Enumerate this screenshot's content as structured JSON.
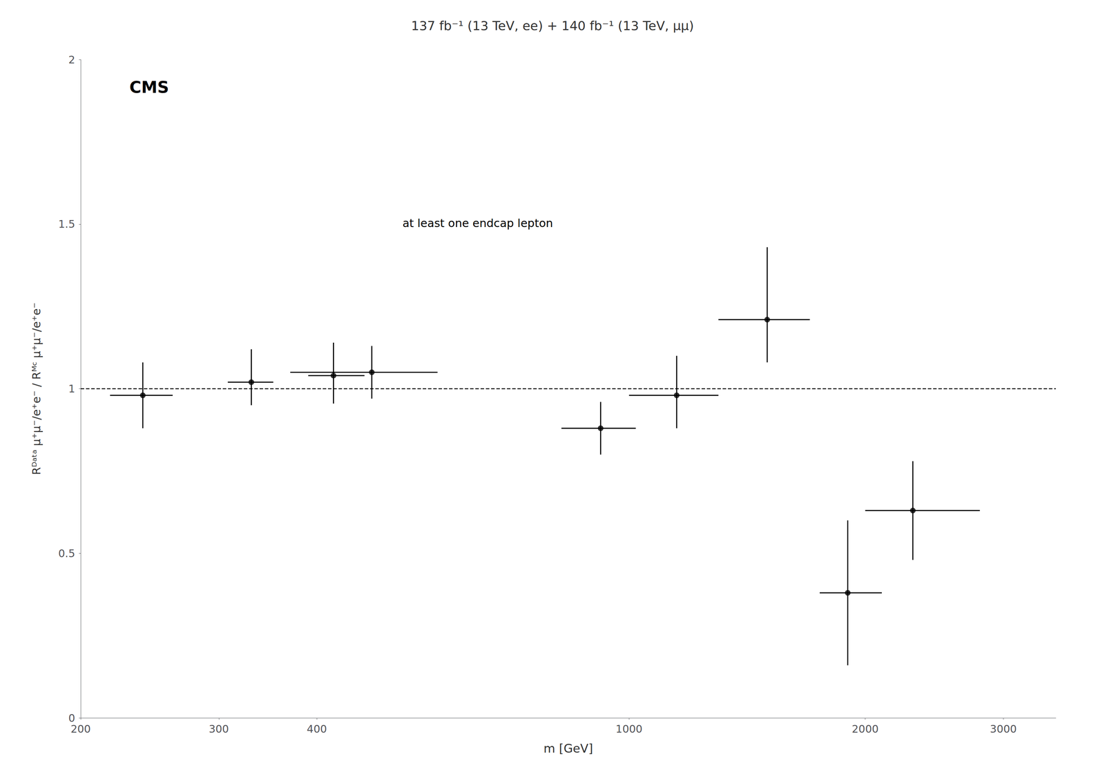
{
  "chart_data": {
    "type": "scatter",
    "title": "137 fb⁻¹ (13 TeV, ee) + 140 fb⁻¹ (13 TeV, μμ)",
    "xlabel": "m [GeV]",
    "ylabel": "Rᴰᵃᵗᵃ μ⁺μ⁻/e⁺e⁻ / Rᴹᶜ μ⁺μ⁻/e⁺e⁻",
    "annotations": [
      "CMS",
      "at least one endcap lepton"
    ],
    "x": [
      240,
      330,
      420,
      470,
      920,
      1150,
      1500,
      1900,
      2300
    ],
    "values": [
      0.98,
      1.02,
      1.04,
      1.05,
      0.88,
      0.98,
      1.21,
      0.38,
      0.63
    ],
    "xerr_minus": [
      22,
      22,
      30,
      100,
      100,
      150,
      200,
      150,
      300
    ],
    "xerr_plus": [
      22,
      22,
      40,
      100,
      100,
      150,
      200,
      200,
      500
    ],
    "yerr_minus": [
      0.1,
      0.07,
      0.085,
      0.08,
      0.08,
      0.1,
      0.13,
      0.22,
      0.15
    ],
    "yerr_plus": [
      0.1,
      0.1,
      0.1,
      0.08,
      0.08,
      0.12,
      0.22,
      0.22,
      0.15
    ],
    "color": "#000000",
    "marker": "circle",
    "hline": {
      "y": 1.0,
      "line_style": "dashed",
      "color": "#000000"
    },
    "log": "x",
    "xlim": [
      200,
      3500
    ],
    "xticks": [
      200,
      300,
      400,
      1000,
      2000,
      3000
    ],
    "ylim": [
      0,
      2.0
    ],
    "yticks": [
      0,
      0.5,
      1.0,
      1.5,
      2.0
    ],
    "grid": false,
    "legend": false
  }
}
